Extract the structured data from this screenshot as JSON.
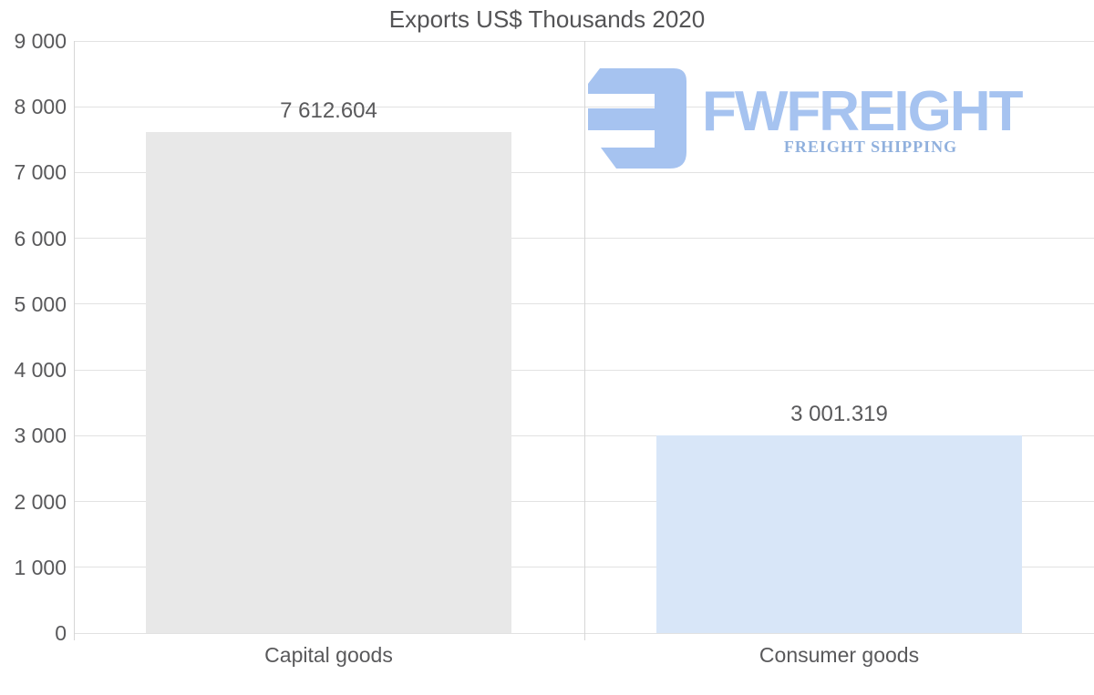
{
  "chart_data": {
    "type": "bar",
    "title": "Exports US$ Thousands 2020",
    "categories": [
      "Capital goods",
      "Consumer goods"
    ],
    "values": [
      7612.604,
      3001.319
    ],
    "value_labels": [
      "7 612.604",
      "3 001.319"
    ],
    "bar_colors": [
      "#e8e8e8",
      "#d8e6f8"
    ],
    "ylim": [
      0,
      9000
    ],
    "ytick_interval": 1000,
    "ytick_labels": [
      "0",
      "1 000",
      "2 000",
      "3 000",
      "4 000",
      "5 000",
      "6 000",
      "7 000",
      "8 000",
      "9 000"
    ],
    "grid": true,
    "legend": false,
    "text_color": "#59595b",
    "grid_color": "#e2e2e2",
    "axis_color": "#d6d6d6",
    "title_color": "#545456"
  },
  "logo": {
    "brand": "FWFREIGHT",
    "tagline": "FREIGHT SHIPPING",
    "brand_color": "#a6c3f0",
    "tagline_color": "#90b0dd",
    "icon_color": "#a6c3f0"
  }
}
